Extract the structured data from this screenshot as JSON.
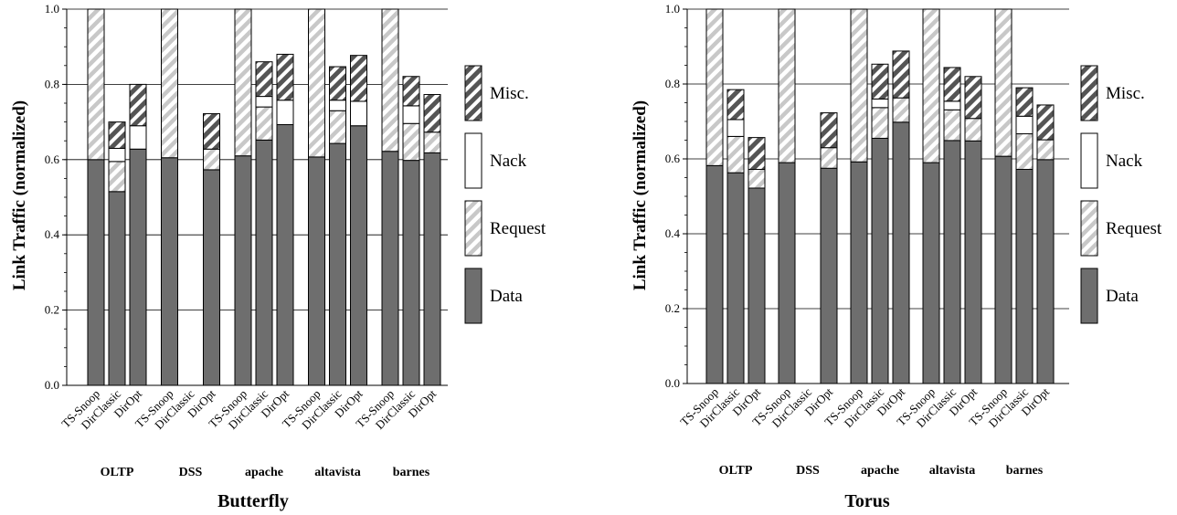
{
  "colors": {
    "data": "#6e6e6e",
    "request_stripe": "#c8c8c8",
    "nack": "#ffffff",
    "misc_stripe": "#555555",
    "grid": "#000000"
  },
  "chart_data": [
    {
      "type": "bar",
      "stacked": true,
      "title": "Butterfly",
      "ylabel": "Link Traffic (normalized)",
      "ylim": [
        0,
        1.0
      ],
      "yticks": [
        "0.0",
        "0.2",
        "0.4",
        "0.6",
        "0.8",
        "1.0"
      ],
      "grid": true,
      "legend_position": "right",
      "legend": [
        "Misc.",
        "Nack",
        "Request",
        "Data"
      ],
      "groups": [
        {
          "name": "OLTP",
          "bars": [
            {
              "label": "TS-Snoop",
              "data": 0.6,
              "request": 0.4,
              "nack": 0.0,
              "misc": 0.0
            },
            {
              "label": "DirClassic",
              "data": 0.515,
              "request": 0.08,
              "nack": 0.035,
              "misc": 0.07
            },
            {
              "label": "DirOpt",
              "data": 0.628,
              "request": 0.0,
              "nack": 0.062,
              "misc": 0.11
            }
          ]
        },
        {
          "name": "DSS",
          "bars": [
            {
              "label": "TS-Snoop",
              "data": 0.605,
              "request": 0.395,
              "nack": 0.0,
              "misc": 0.0
            },
            {
              "label": "DirClassic",
              "data": 0.0,
              "request": 0.0,
              "nack": 0.0,
              "misc": 0.0
            },
            {
              "label": "DirOpt",
              "data": 0.573,
              "request": 0.055,
              "nack": 0.0,
              "misc": 0.094
            }
          ]
        },
        {
          "name": "apache",
          "bars": [
            {
              "label": "TS-Snoop",
              "data": 0.61,
              "request": 0.39,
              "nack": 0.0,
              "misc": 0.0
            },
            {
              "label": "DirClassic",
              "data": 0.652,
              "request": 0.088,
              "nack": 0.028,
              "misc": 0.092
            },
            {
              "label": "DirOpt",
              "data": 0.693,
              "request": 0.0,
              "nack": 0.065,
              "misc": 0.122
            }
          ]
        },
        {
          "name": "altavista",
          "bars": [
            {
              "label": "TS-Snoop",
              "data": 0.607,
              "request": 0.393,
              "nack": 0.0,
              "misc": 0.0
            },
            {
              "label": "DirClassic",
              "data": 0.643,
              "request": 0.087,
              "nack": 0.028,
              "misc": 0.089
            },
            {
              "label": "DirOpt",
              "data": 0.69,
              "request": 0.0,
              "nack": 0.065,
              "misc": 0.122
            }
          ]
        },
        {
          "name": "barnes",
          "bars": [
            {
              "label": "TS-Snoop",
              "data": 0.622,
              "request": 0.378,
              "nack": 0.0,
              "misc": 0.0
            },
            {
              "label": "DirClassic",
              "data": 0.598,
              "request": 0.098,
              "nack": 0.047,
              "misc": 0.078
            },
            {
              "label": "DirOpt",
              "data": 0.618,
              "request": 0.055,
              "nack": 0.0,
              "misc": 0.1
            }
          ]
        }
      ]
    },
    {
      "type": "bar",
      "stacked": true,
      "title": "Torus",
      "ylabel": "Link Traffic (normalized)",
      "ylim": [
        0,
        1.0
      ],
      "yticks": [
        "0.0",
        "0.2",
        "0.4",
        "0.6",
        "0.8",
        "1.0"
      ],
      "grid": true,
      "legend_position": "right",
      "legend": [
        "Misc.",
        "Nack",
        "Request",
        "Data"
      ],
      "groups": [
        {
          "name": "OLTP",
          "bars": [
            {
              "label": "TS-Snoop",
              "data": 0.582,
              "request": 0.418,
              "nack": 0.0,
              "misc": 0.0
            },
            {
              "label": "DirClassic",
              "data": 0.563,
              "request": 0.097,
              "nack": 0.045,
              "misc": 0.08
            },
            {
              "label": "DirOpt",
              "data": 0.522,
              "request": 0.05,
              "nack": 0.0,
              "misc": 0.085
            }
          ]
        },
        {
          "name": "DSS",
          "bars": [
            {
              "label": "TS-Snoop",
              "data": 0.59,
              "request": 0.41,
              "nack": 0.0,
              "misc": 0.0
            },
            {
              "label": "DirClassic",
              "data": 0.0,
              "request": 0.0,
              "nack": 0.0,
              "misc": 0.0
            },
            {
              "label": "DirOpt",
              "data": 0.575,
              "request": 0.055,
              "nack": 0.0,
              "misc": 0.093
            }
          ]
        },
        {
          "name": "apache",
          "bars": [
            {
              "label": "TS-Snoop",
              "data": 0.592,
              "request": 0.408,
              "nack": 0.0,
              "misc": 0.0
            },
            {
              "label": "DirClassic",
              "data": 0.655,
              "request": 0.082,
              "nack": 0.023,
              "misc": 0.093
            },
            {
              "label": "DirOpt",
              "data": 0.698,
              "request": 0.065,
              "nack": 0.0,
              "misc": 0.125
            }
          ]
        },
        {
          "name": "altavista",
          "bars": [
            {
              "label": "TS-Snoop",
              "data": 0.59,
              "request": 0.41,
              "nack": 0.0,
              "misc": 0.0
            },
            {
              "label": "DirClassic",
              "data": 0.649,
              "request": 0.082,
              "nack": 0.023,
              "misc": 0.09
            },
            {
              "label": "DirOpt",
              "data": 0.648,
              "request": 0.06,
              "nack": 0.0,
              "misc": 0.112
            }
          ]
        },
        {
          "name": "barnes",
          "bars": [
            {
              "label": "TS-Snoop",
              "data": 0.607,
              "request": 0.393,
              "nack": 0.0,
              "misc": 0.0
            },
            {
              "label": "DirClassic",
              "data": 0.572,
              "request": 0.095,
              "nack": 0.047,
              "misc": 0.076
            },
            {
              "label": "DirOpt",
              "data": 0.598,
              "request": 0.053,
              "nack": 0.0,
              "misc": 0.093
            }
          ]
        }
      ]
    }
  ]
}
